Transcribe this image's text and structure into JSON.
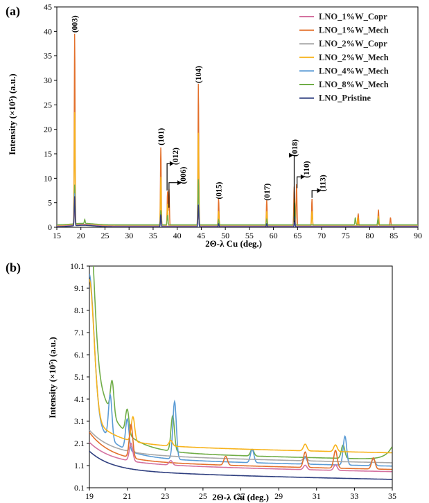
{
  "colors": {
    "LNO_1%W_Copr": "#d4719f",
    "LNO_1%W_Mech": "#e3702b",
    "LNO_2%W_Copr": "#a8a8a8",
    "LNO_2%W_Mech": "#f7b31c",
    "LNO_4%W_Mech": "#5b9bd5",
    "LNO_8%W_Mech": "#70ad47",
    "LNO_Pristine": "#2f3f7f"
  },
  "chart_data": [
    {
      "panel": "(a)",
      "type": "line",
      "xlabel": "2Θ-λ Cu (deg.)",
      "ylabel": "Intensity (×10⁵) (a.u.)",
      "xlim": [
        15,
        90
      ],
      "ylim": [
        0,
        45
      ],
      "xticks": [
        "15",
        "20",
        "25",
        "30",
        "35",
        "40",
        "45",
        "50",
        "55",
        "60",
        "65",
        "70",
        "75",
        "80",
        "85",
        "90"
      ],
      "yticks": [
        "0",
        "5",
        "10",
        "15",
        "20",
        "25",
        "30",
        "35",
        "40",
        "45"
      ],
      "legend": [
        "LNO_1%W_Copr",
        "LNO_1%W_Mech",
        "LNO_2%W_Copr",
        "LNO_2%W_Mech",
        "LNO_4%W_Mech",
        "LNO_8%W_Mech",
        "LNO_Pristine"
      ],
      "peaks_series": [
        {
          "name": "LNO_1%W_Mech",
          "baseline": 0.3,
          "peaks": [
            [
              18.7,
              39
            ],
            [
              36.6,
              16
            ],
            [
              38.0,
              7
            ],
            [
              38.3,
              7.5
            ],
            [
              44.4,
              29
            ],
            [
              48.6,
              5.5
            ],
            [
              58.6,
              5.2
            ],
            [
              64.3,
              8
            ],
            [
              64.8,
              8.5
            ],
            [
              68.0,
              5.5
            ],
            [
              77.6,
              2.5
            ],
            [
              81.8,
              3.3
            ],
            [
              84.3,
              1.7
            ]
          ]
        },
        {
          "name": "LNO_2%W_Mech",
          "baseline": 0.3,
          "peaks": [
            [
              18.7,
              23
            ],
            [
              36.6,
              10
            ],
            [
              38.0,
              4.5
            ],
            [
              44.4,
              19
            ],
            [
              48.6,
              3
            ],
            [
              58.6,
              3
            ],
            [
              64.4,
              5.5
            ],
            [
              68.0,
              3
            ],
            [
              77.5,
              1.8
            ],
            [
              81.8,
              2
            ]
          ]
        },
        {
          "name": "LNO_8%W_Mech",
          "baseline": 0.5,
          "peaks": [
            [
              18.7,
              8
            ],
            [
              20.8,
              0.8
            ],
            [
              36.6,
              3
            ],
            [
              38.0,
              2
            ],
            [
              44.4,
              9.3
            ],
            [
              48.6,
              1
            ],
            [
              58.6,
              1.1
            ],
            [
              64.4,
              4.5
            ],
            [
              77.0,
              1.5
            ],
            [
              81.7,
              1.2
            ]
          ]
        },
        {
          "name": "LNO_4%W_Mech",
          "baseline": 0.2,
          "peaks": [
            [
              18.7,
              6.5
            ],
            [
              36.6,
              2.2
            ],
            [
              44.4,
              4.5
            ],
            [
              64.4,
              2
            ]
          ]
        },
        {
          "name": "LNO_2%W_Copr",
          "baseline": 0.2,
          "peaks": [
            [
              18.7,
              5.5
            ],
            [
              36.6,
              2
            ],
            [
              44.4,
              4
            ],
            [
              64.4,
              1.5
            ]
          ]
        },
        {
          "name": "LNO_1%W_Copr",
          "baseline": 0.2,
          "peaks": [
            [
              18.7,
              5
            ],
            [
              36.6,
              2
            ],
            [
              44.4,
              4
            ],
            [
              64.4,
              1.5
            ]
          ]
        },
        {
          "name": "LNO_Pristine",
          "baseline": 0.1,
          "peaks": [
            [
              18.7,
              6
            ],
            [
              36.6,
              2.5
            ],
            [
              44.4,
              4.5
            ],
            [
              64.4,
              1
            ],
            [
              48.6,
              0.6
            ],
            [
              58.6,
              0.6
            ]
          ]
        }
      ],
      "annotations": [
        {
          "label": "(003)",
          "x": 18.7,
          "y": 41.5
        },
        {
          "label": "(101)",
          "x": 36.6,
          "y": 18.5
        },
        {
          "label": "(104)",
          "x": 44.4,
          "y": 31.2
        },
        {
          "label": "(015)",
          "x": 48.6,
          "y": 7.5
        },
        {
          "label": "(017)",
          "x": 58.6,
          "y": 7.2
        },
        {
          "label": "(012)",
          "x": 39.6,
          "y": 14.5,
          "arrow_from": [
            37.9,
            7.5
          ]
        },
        {
          "label": "(006)",
          "x": 41.2,
          "y": 10.6,
          "arrow_from": [
            38.3,
            4.0
          ]
        },
        {
          "label": "(018)",
          "x": 64.4,
          "y": 16.2,
          "arrow_from": [
            64.3,
            1.0
          ]
        },
        {
          "label": "(110)",
          "x": 66.8,
          "y": 11.8,
          "arrow_from": [
            64.9,
            8.0
          ]
        },
        {
          "label": "(113)",
          "x": 70.2,
          "y": 9.0,
          "arrow_from": [
            68.0,
            6.0
          ]
        }
      ]
    },
    {
      "panel": "(b)",
      "type": "line",
      "xlabel": "2Θ-λ Cu (deg.)",
      "ylabel": "Intensity (×10⁵) (a.u.)",
      "xlim": [
        19,
        35
      ],
      "ylim": [
        0.1,
        10.1
      ],
      "xticks": [
        "19",
        "21",
        "23",
        "25",
        "27",
        "29",
        "31",
        "33",
        "35"
      ],
      "yticks": [
        "0.1",
        "1.1",
        "2.1",
        "3.1",
        "4.1",
        "5.1",
        "6.1",
        "7.1",
        "8.1",
        "9.1",
        "10.1"
      ],
      "bg_series": [
        {
          "name": "LNO_8%W_Mech",
          "a": 1.6,
          "b": 4.9,
          "peaks": [
            [
              20.2,
              1.5
            ],
            [
              21.0,
              1.1
            ],
            [
              23.4,
              1.6
            ],
            [
              27.6,
              0.3
            ],
            [
              32.4,
              0.6
            ]
          ],
          "end_rise": 0.6
        },
        {
          "name": "LNO_4%W_Mech",
          "a": 1.3,
          "b": 2.2,
          "peaks": [
            [
              20.1,
              2.0
            ],
            [
              21.0,
              1.4
            ],
            [
              23.5,
              2.6
            ],
            [
              27.6,
              0.6
            ],
            [
              30.4,
              0.3
            ],
            [
              32.5,
              1.3
            ],
            [
              34.0,
              0.3
            ]
          ],
          "end_rise": 0
        },
        {
          "name": "LNO_2%W_Mech",
          "a": 1.9,
          "b": 1.35,
          "peaks": [
            [
              21.3,
              1.1
            ],
            [
              23.3,
              0.25
            ],
            [
              30.4,
              0.3
            ],
            [
              32.0,
              0.3
            ]
          ],
          "end_rise": 0
        },
        {
          "name": "LNO_2%W_Copr",
          "a": 1.45,
          "b": 1.0,
          "peaks": [
            [
              21.2,
              0.25
            ],
            [
              30.4,
              0.2
            ]
          ],
          "end_rise": 0
        },
        {
          "name": "LNO_1%W_Mech",
          "a": 1.15,
          "b": 1.2,
          "peaks": [
            [
              21.2,
              1.5
            ],
            [
              26.2,
              0.4
            ],
            [
              30.4,
              0.7
            ],
            [
              32.0,
              0.8
            ],
            [
              34.0,
              0.5
            ]
          ],
          "end_rise": 0
        },
        {
          "name": "LNO_1%W_Copr",
          "a": 1.05,
          "b": 0.85,
          "peaks": [
            [
              21.2,
              0.8
            ],
            [
              23.3,
              0.2
            ],
            [
              30.4,
              0.2
            ],
            [
              32.0,
              0.25
            ]
          ],
          "end_rise": 0
        },
        {
          "name": "LNO_Pristine",
          "a": 0.7,
          "b": 0.8,
          "peaks": [],
          "end_rise": 0
        }
      ]
    }
  ]
}
